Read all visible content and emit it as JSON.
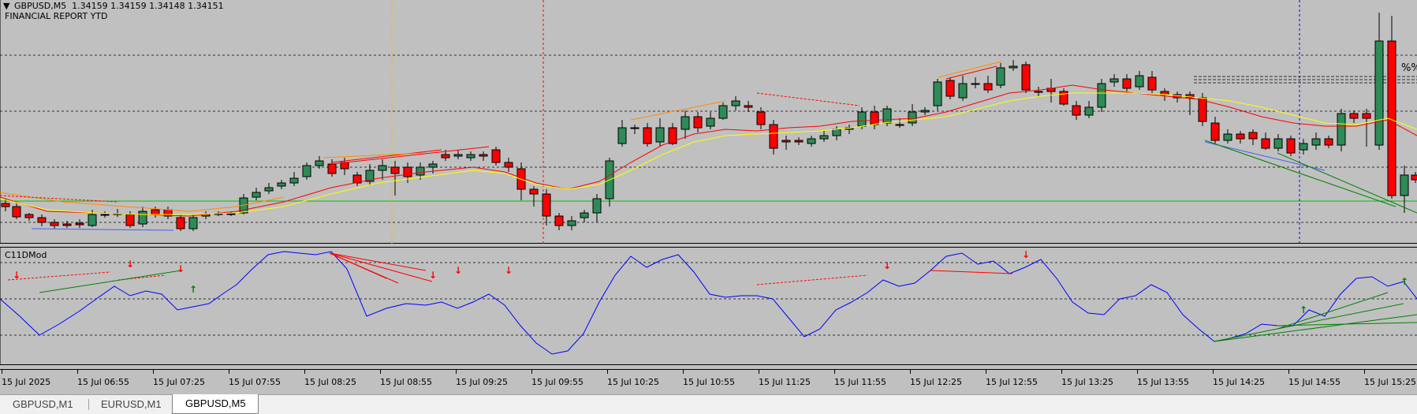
{
  "header": {
    "symbol_line": "GBPUSD,M5  1.34159 1.34159 1.34148 1.34151",
    "report_line": "FINANCIAL REPORT YTD",
    "percent_label": "%%",
    "menu_icon": "triangle-down-icon"
  },
  "indicator": {
    "name": "C11DMod"
  },
  "time_axis": {
    "labels": [
      "15 Jul 2025",
      "15 Jul 06:55",
      "15 Jul 07:25",
      "15 Jul 07:55",
      "15 Jul 08:25",
      "15 Jul 08:55",
      "15 Jul 09:25",
      "15 Jul 09:55",
      "15 Jul 10:25",
      "15 Jul 10:55",
      "15 Jul 11:25",
      "15 Jul 11:55",
      "15 Jul 12:25",
      "15 Jul 12:55",
      "15 Jul 13:25",
      "15 Jul 13:55",
      "15 Jul 14:25",
      "15 Jul 14:55",
      "15 Jul 15:25"
    ]
  },
  "tabs": [
    {
      "label": "GBPUSD,M1",
      "active": false
    },
    {
      "label": "EURUSD,M1",
      "active": false
    },
    {
      "label": "GBPUSD,M5",
      "active": true
    }
  ],
  "colors": {
    "background": "#c0c0c0",
    "bull_candle": "#2e8b57",
    "bear_candle": "#ff0000",
    "ma_fast": "#ff0000",
    "ma_slow": "#ffff00",
    "oscillator": "#0000ff",
    "level_line": "#00c000"
  }
}
